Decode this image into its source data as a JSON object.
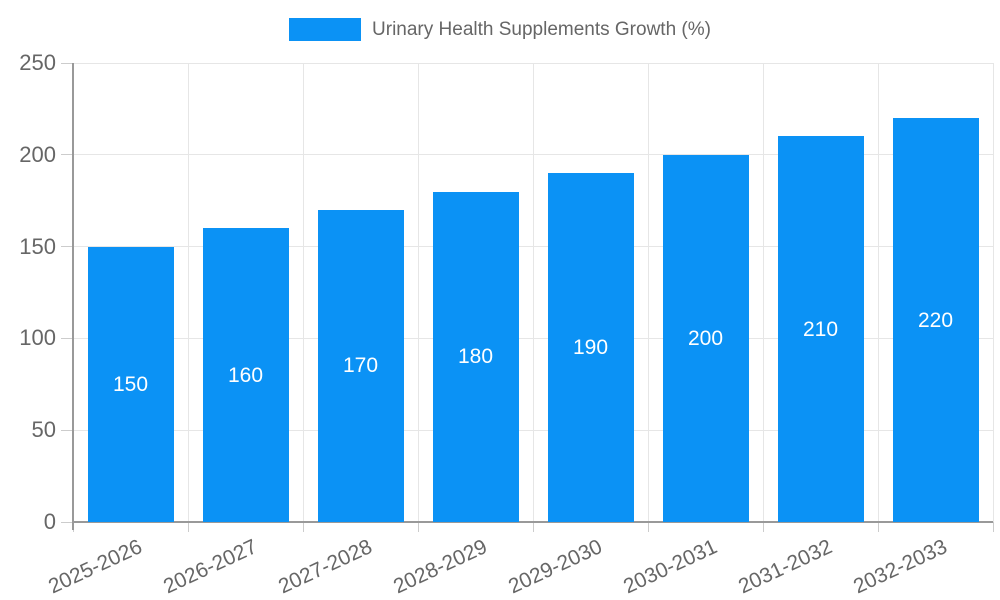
{
  "chart_data": {
    "type": "bar",
    "title": "Urinary Health Supplements Growth (%)",
    "categories": [
      "2025-2026",
      "2026-2027",
      "2027-2028",
      "2028-2029",
      "2029-2030",
      "2030-2031",
      "2031-2032",
      "2032-2033"
    ],
    "values": [
      150,
      160,
      170,
      180,
      190,
      200,
      210,
      220
    ],
    "xlabel": "",
    "ylabel": "",
    "ylim": [
      0,
      250
    ],
    "yticks": [
      0,
      50,
      100,
      150,
      200,
      250
    ],
    "grid": true,
    "legend_position": "top-center"
  },
  "legend": {
    "label": "Urinary Health Supplements Growth (%)"
  },
  "colors": {
    "bar": "#0B92F5",
    "bar_label_text": "#FFFFFF",
    "legend_text": "#666666",
    "tick_text": "#666666",
    "grid_line": "#E6E6E6",
    "tick_mark": "#CCCCCC",
    "axis_line": "#999999"
  }
}
